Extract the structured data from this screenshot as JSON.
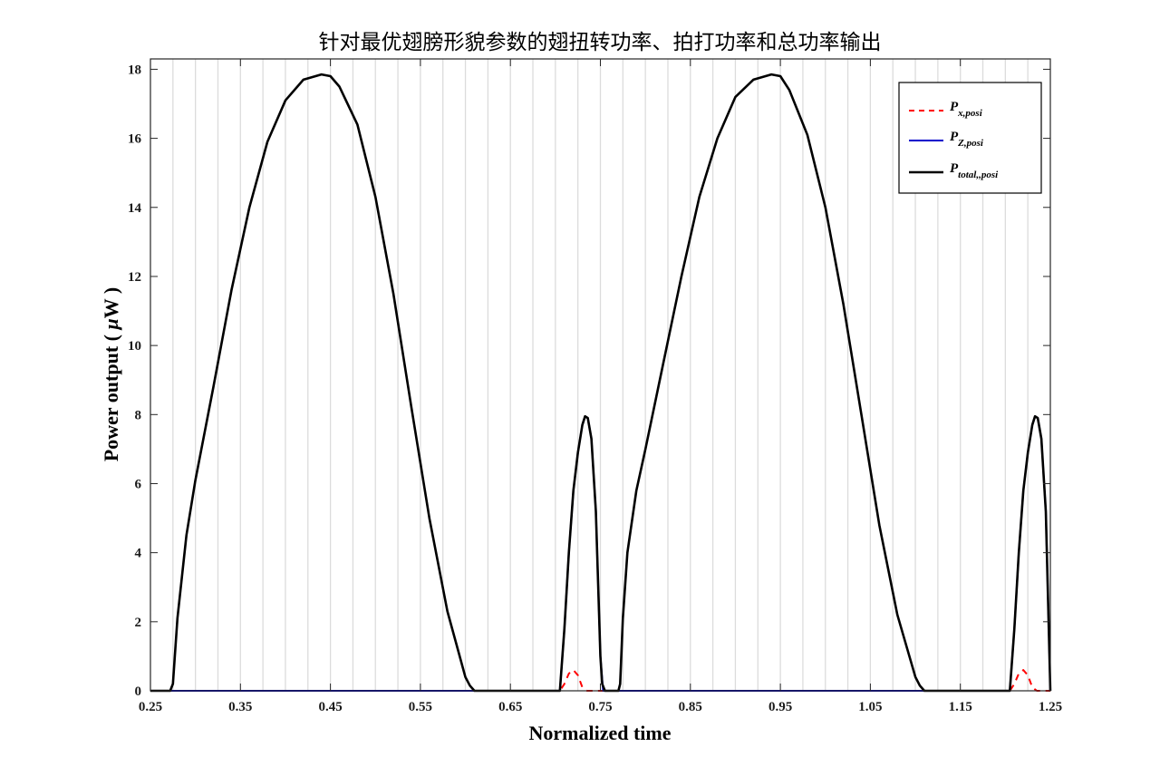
{
  "chart_data": {
    "type": "line",
    "title": "针对最优翅膀形貌参数的翅扭转功率、拍打功率和总功率输出",
    "xlabel": "Normalized time",
    "ylabel_prefix": "Power output ( ",
    "ylabel_mu": "μ",
    "ylabel_suffix": "W )",
    "xlim": [
      0.25,
      1.25
    ],
    "ylim": [
      0,
      18.3
    ],
    "x_ticks": [
      0.25,
      0.35,
      0.45,
      0.55,
      0.65,
      0.75,
      0.85,
      0.95,
      1.05,
      1.15,
      1.25
    ],
    "x_tick_labels": [
      "0.25",
      "0.35",
      "0.45",
      "0.55",
      "0.65",
      "0.75",
      "0.85",
      "0.95",
      "1.05",
      "1.15",
      "1.25"
    ],
    "y_ticks": [
      0,
      2,
      4,
      6,
      8,
      10,
      12,
      14,
      16,
      18
    ],
    "y_tick_labels": [
      "0",
      "2",
      "4",
      "6",
      "8",
      "10",
      "12",
      "14",
      "16",
      "18"
    ],
    "grid": "vertical lines every 0.025",
    "grid_step": 0.025,
    "legend_position": "top-right",
    "series": [
      {
        "name_main": "P",
        "name_sub": "x,posi",
        "color": "#ff0000",
        "style": "dashed",
        "x": [
          0.25,
          0.705,
          0.71,
          0.715,
          0.72,
          0.725,
          0.73,
          0.735,
          1.205,
          1.21,
          1.215,
          1.22,
          1.225,
          1.23,
          1.235,
          1.25
        ],
        "y": [
          0,
          0,
          0.2,
          0.5,
          0.6,
          0.45,
          0.1,
          0,
          0,
          0.2,
          0.5,
          0.6,
          0.45,
          0.1,
          0,
          0
        ]
      },
      {
        "name_main": "P",
        "name_sub": "Z,posi",
        "color": "#0000cc",
        "style": "solid",
        "x": [
          0.25,
          0.705,
          0.71,
          0.715,
          0.72,
          0.725,
          0.73,
          0.733,
          0.736,
          0.74,
          0.745,
          0.75,
          0.753,
          0.755,
          1.205,
          1.21,
          1.215,
          1.22,
          1.225,
          1.23,
          1.233,
          1.236,
          1.24,
          1.245,
          1.25
        ],
        "y": [
          0,
          0,
          1.8,
          4.0,
          5.8,
          6.9,
          7.7,
          7.95,
          7.9,
          7.3,
          5.2,
          1.0,
          0,
          0,
          0,
          1.8,
          4.0,
          5.8,
          6.9,
          7.7,
          7.95,
          7.9,
          7.3,
          5.2,
          0
        ]
      },
      {
        "name_main": "P",
        "name_sub": "total,,posi",
        "color": "#000000",
        "style": "solid",
        "x": [
          0.25,
          0.272,
          0.275,
          0.28,
          0.29,
          0.3,
          0.32,
          0.34,
          0.36,
          0.38,
          0.4,
          0.42,
          0.44,
          0.45,
          0.46,
          0.48,
          0.5,
          0.52,
          0.54,
          0.56,
          0.58,
          0.6,
          0.605,
          0.61,
          0.705,
          0.71,
          0.715,
          0.72,
          0.725,
          0.73,
          0.733,
          0.736,
          0.74,
          0.745,
          0.75,
          0.752,
          0.755,
          0.77,
          0.772,
          0.775,
          0.78,
          0.79,
          0.8,
          0.82,
          0.84,
          0.86,
          0.88,
          0.9,
          0.92,
          0.94,
          0.95,
          0.96,
          0.98,
          1.0,
          1.02,
          1.04,
          1.06,
          1.08,
          1.1,
          1.105,
          1.11,
          1.205,
          1.21,
          1.215,
          1.22,
          1.225,
          1.23,
          1.233,
          1.236,
          1.24,
          1.245,
          1.25
        ],
        "y": [
          0,
          0,
          0.2,
          2.1,
          4.5,
          6.1,
          8.8,
          11.6,
          14.0,
          15.9,
          17.1,
          17.7,
          17.85,
          17.8,
          17.5,
          16.4,
          14.3,
          11.5,
          8.2,
          5.0,
          2.3,
          0.4,
          0.15,
          0,
          0,
          1.8,
          4.0,
          5.8,
          6.9,
          7.7,
          7.95,
          7.9,
          7.3,
          5.2,
          1.0,
          0.2,
          0,
          0,
          0.2,
          2.1,
          4.0,
          5.8,
          7.0,
          9.5,
          12.0,
          14.3,
          16.0,
          17.2,
          17.7,
          17.85,
          17.8,
          17.4,
          16.1,
          14.0,
          11.2,
          8.0,
          4.8,
          2.2,
          0.4,
          0.15,
          0,
          0,
          1.8,
          4.0,
          5.8,
          6.9,
          7.7,
          7.95,
          7.9,
          7.3,
          5.2,
          0
        ]
      }
    ]
  }
}
